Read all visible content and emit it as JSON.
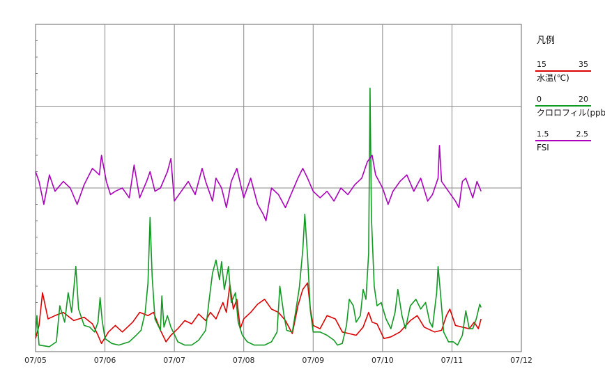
{
  "chart_data": {
    "type": "line",
    "x_ticks": [
      "07/05",
      "07/06",
      "07/07",
      "07/08",
      "07/09",
      "07/10",
      "07/11",
      "07/12"
    ],
    "x_domain_days": [
      0,
      7
    ],
    "grid": true,
    "legend": {
      "title": "凡例",
      "placement": "right"
    },
    "series": [
      {
        "name": "水温(℃)",
        "color": "#dd0000",
        "range": [
          15,
          35
        ],
        "range_labels": [
          "15",
          "35"
        ],
        "points": [
          [
            0,
            15.8
          ],
          [
            0.05,
            16.6
          ],
          [
            0.1,
            18.6
          ],
          [
            0.18,
            17.0
          ],
          [
            0.28,
            17.2
          ],
          [
            0.4,
            17.4
          ],
          [
            0.55,
            16.9
          ],
          [
            0.7,
            17.1
          ],
          [
            0.82,
            16.7
          ],
          [
            0.9,
            16.0
          ],
          [
            0.95,
            15.5
          ],
          [
            1.05,
            16.2
          ],
          [
            1.15,
            16.6
          ],
          [
            1.25,
            16.2
          ],
          [
            1.4,
            16.8
          ],
          [
            1.5,
            17.4
          ],
          [
            1.62,
            17.2
          ],
          [
            1.7,
            17.4
          ],
          [
            1.8,
            16.3
          ],
          [
            1.88,
            15.6
          ],
          [
            1.95,
            16.0
          ],
          [
            2.05,
            16.4
          ],
          [
            2.15,
            16.9
          ],
          [
            2.25,
            16.7
          ],
          [
            2.35,
            17.3
          ],
          [
            2.45,
            16.9
          ],
          [
            2.52,
            17.4
          ],
          [
            2.6,
            17.0
          ],
          [
            2.7,
            18.0
          ],
          [
            2.75,
            17.4
          ],
          [
            2.8,
            19.1
          ],
          [
            2.85,
            17.6
          ],
          [
            2.9,
            18.2
          ],
          [
            2.95,
            16.4
          ],
          [
            3.0,
            17.0
          ],
          [
            3.1,
            17.4
          ],
          [
            3.2,
            17.9
          ],
          [
            3.3,
            18.2
          ],
          [
            3.4,
            17.6
          ],
          [
            3.5,
            17.4
          ],
          [
            3.6,
            16.9
          ],
          [
            3.7,
            16.1
          ],
          [
            3.78,
            17.8
          ],
          [
            3.85,
            18.8
          ],
          [
            3.92,
            19.2
          ],
          [
            3.96,
            17.6
          ],
          [
            4.0,
            16.6
          ],
          [
            4.1,
            16.4
          ],
          [
            4.2,
            17.2
          ],
          [
            4.32,
            17.0
          ],
          [
            4.42,
            16.2
          ],
          [
            4.52,
            16.1
          ],
          [
            4.62,
            16.0
          ],
          [
            4.72,
            16.5
          ],
          [
            4.8,
            17.4
          ],
          [
            4.85,
            16.8
          ],
          [
            4.92,
            16.7
          ],
          [
            5.02,
            15.8
          ],
          [
            5.12,
            15.9
          ],
          [
            5.25,
            16.2
          ],
          [
            5.4,
            16.9
          ],
          [
            5.5,
            17.2
          ],
          [
            5.6,
            16.5
          ],
          [
            5.75,
            16.2
          ],
          [
            5.85,
            16.3
          ],
          [
            5.92,
            17.2
          ],
          [
            5.97,
            17.6
          ],
          [
            6.05,
            16.6
          ],
          [
            6.15,
            16.5
          ],
          [
            6.25,
            16.4
          ],
          [
            6.32,
            16.8
          ],
          [
            6.38,
            16.4
          ],
          [
            6.42,
            17.0
          ]
        ]
      },
      {
        "name": "クロロフィル(ppb)",
        "color": "#119922",
        "range": [
          0,
          20
        ],
        "range_labels": [
          "0",
          "20"
        ],
        "points": [
          [
            0,
            1.0
          ],
          [
            0.02,
            2.2
          ],
          [
            0.05,
            0.4
          ],
          [
            0.2,
            0.3
          ],
          [
            0.3,
            0.6
          ],
          [
            0.35,
            2.8
          ],
          [
            0.42,
            1.8
          ],
          [
            0.47,
            3.6
          ],
          [
            0.52,
            2.4
          ],
          [
            0.58,
            5.2
          ],
          [
            0.62,
            2.6
          ],
          [
            0.7,
            1.6
          ],
          [
            0.78,
            1.5
          ],
          [
            0.85,
            1.2
          ],
          [
            0.9,
            1.8
          ],
          [
            0.93,
            3.3
          ],
          [
            0.96,
            1.9
          ],
          [
            1.0,
            0.8
          ],
          [
            1.1,
            0.5
          ],
          [
            1.2,
            0.4
          ],
          [
            1.35,
            0.6
          ],
          [
            1.45,
            1.0
          ],
          [
            1.52,
            1.3
          ],
          [
            1.58,
            2.4
          ],
          [
            1.62,
            4.2
          ],
          [
            1.65,
            8.2
          ],
          [
            1.68,
            4.6
          ],
          [
            1.72,
            2.0
          ],
          [
            1.8,
            1.3
          ],
          [
            1.82,
            3.4
          ],
          [
            1.85,
            1.5
          ],
          [
            1.9,
            2.2
          ],
          [
            1.95,
            1.5
          ],
          [
            2.05,
            0.6
          ],
          [
            2.15,
            0.4
          ],
          [
            2.25,
            0.4
          ],
          [
            2.35,
            0.7
          ],
          [
            2.45,
            1.3
          ],
          [
            2.5,
            3.1
          ],
          [
            2.55,
            4.8
          ],
          [
            2.6,
            5.6
          ],
          [
            2.65,
            4.4
          ],
          [
            2.68,
            5.5
          ],
          [
            2.72,
            3.8
          ],
          [
            2.78,
            5.2
          ],
          [
            2.82,
            3.0
          ],
          [
            2.88,
            3.6
          ],
          [
            2.92,
            1.8
          ],
          [
            2.98,
            1.0
          ],
          [
            3.05,
            0.6
          ],
          [
            3.15,
            0.4
          ],
          [
            3.3,
            0.4
          ],
          [
            3.4,
            0.6
          ],
          [
            3.48,
            1.2
          ],
          [
            3.52,
            4.0
          ],
          [
            3.58,
            2.2
          ],
          [
            3.62,
            1.3
          ],
          [
            3.7,
            1.2
          ],
          [
            3.75,
            2.5
          ],
          [
            3.8,
            3.9
          ],
          [
            3.85,
            6.2
          ],
          [
            3.88,
            8.4
          ],
          [
            3.92,
            5.8
          ],
          [
            3.96,
            2.5
          ],
          [
            4.0,
            1.2
          ],
          [
            4.1,
            1.2
          ],
          [
            4.2,
            1.0
          ],
          [
            4.3,
            0.7
          ],
          [
            4.35,
            0.4
          ],
          [
            4.42,
            0.5
          ],
          [
            4.48,
            1.6
          ],
          [
            4.52,
            3.2
          ],
          [
            4.58,
            2.8
          ],
          [
            4.62,
            1.8
          ],
          [
            4.68,
            2.2
          ],
          [
            4.72,
            3.8
          ],
          [
            4.76,
            3.2
          ],
          [
            4.8,
            6.0
          ],
          [
            4.82,
            16.1
          ],
          [
            4.84,
            8.2
          ],
          [
            4.88,
            4.0
          ],
          [
            4.92,
            2.8
          ],
          [
            4.98,
            3.0
          ],
          [
            5.05,
            2.0
          ],
          [
            5.12,
            1.4
          ],
          [
            5.18,
            2.4
          ],
          [
            5.22,
            3.8
          ],
          [
            5.28,
            2.2
          ],
          [
            5.33,
            1.4
          ],
          [
            5.4,
            2.8
          ],
          [
            5.48,
            3.2
          ],
          [
            5.55,
            2.6
          ],
          [
            5.62,
            3.0
          ],
          [
            5.68,
            1.8
          ],
          [
            5.72,
            1.5
          ],
          [
            5.78,
            3.6
          ],
          [
            5.8,
            5.2
          ],
          [
            5.83,
            3.8
          ],
          [
            5.88,
            1.2
          ],
          [
            5.95,
            0.6
          ],
          [
            6.02,
            0.6
          ],
          [
            6.08,
            0.4
          ],
          [
            6.15,
            1.0
          ],
          [
            6.2,
            2.5
          ],
          [
            6.25,
            1.4
          ],
          [
            6.3,
            1.4
          ],
          [
            6.35,
            2.0
          ],
          [
            6.4,
            2.9
          ],
          [
            6.42,
            2.7
          ]
        ]
      },
      {
        "name": "FSI",
        "color": "#aa00bb",
        "range": [
          1.5,
          2.5
        ],
        "range_labels": [
          "1.5",
          "2.5"
        ],
        "points": [
          [
            0,
            2.05
          ],
          [
            0.05,
            2.02
          ],
          [
            0.12,
            1.95
          ],
          [
            0.2,
            2.04
          ],
          [
            0.28,
            1.99
          ],
          [
            0.4,
            2.02
          ],
          [
            0.5,
            2.0
          ],
          [
            0.6,
            1.95
          ],
          [
            0.7,
            2.01
          ],
          [
            0.82,
            2.06
          ],
          [
            0.92,
            2.04
          ],
          [
            0.95,
            2.1
          ],
          [
            1.02,
            2.02
          ],
          [
            1.08,
            1.98
          ],
          [
            1.15,
            1.99
          ],
          [
            1.25,
            2.0
          ],
          [
            1.35,
            1.97
          ],
          [
            1.42,
            2.07
          ],
          [
            1.5,
            1.97
          ],
          [
            1.6,
            2.02
          ],
          [
            1.65,
            2.05
          ],
          [
            1.72,
            1.99
          ],
          [
            1.8,
            2.0
          ],
          [
            1.9,
            2.05
          ],
          [
            1.95,
            2.09
          ],
          [
            2.0,
            1.96
          ],
          [
            2.1,
            1.99
          ],
          [
            2.2,
            2.02
          ],
          [
            2.3,
            1.98
          ],
          [
            2.4,
            2.06
          ],
          [
            2.45,
            2.02
          ],
          [
            2.55,
            1.96
          ],
          [
            2.6,
            2.03
          ],
          [
            2.68,
            2.0
          ],
          [
            2.75,
            1.94
          ],
          [
            2.82,
            2.02
          ],
          [
            2.9,
            2.06
          ],
          [
            3.0,
            1.97
          ],
          [
            3.1,
            2.03
          ],
          [
            3.2,
            1.95
          ],
          [
            3.28,
            1.92
          ],
          [
            3.32,
            1.9
          ],
          [
            3.4,
            2.0
          ],
          [
            3.5,
            1.98
          ],
          [
            3.6,
            1.94
          ],
          [
            3.7,
            1.99
          ],
          [
            3.78,
            2.03
          ],
          [
            3.85,
            2.06
          ],
          [
            3.92,
            2.03
          ],
          [
            4.0,
            1.99
          ],
          [
            4.1,
            1.97
          ],
          [
            4.2,
            1.99
          ],
          [
            4.3,
            1.96
          ],
          [
            4.4,
            2.0
          ],
          [
            4.5,
            1.98
          ],
          [
            4.6,
            2.01
          ],
          [
            4.7,
            2.03
          ],
          [
            4.78,
            2.08
          ],
          [
            4.85,
            2.1
          ],
          [
            4.9,
            2.04
          ],
          [
            5.0,
            2.0
          ],
          [
            5.08,
            1.95
          ],
          [
            5.15,
            1.99
          ],
          [
            5.25,
            2.02
          ],
          [
            5.35,
            2.04
          ],
          [
            5.45,
            1.99
          ],
          [
            5.55,
            2.03
          ],
          [
            5.65,
            1.96
          ],
          [
            5.72,
            1.98
          ],
          [
            5.8,
            2.03
          ],
          [
            5.82,
            2.13
          ],
          [
            5.85,
            2.02
          ],
          [
            5.95,
            1.99
          ],
          [
            6.05,
            1.96
          ],
          [
            6.1,
            1.94
          ],
          [
            6.15,
            2.02
          ],
          [
            6.2,
            2.03
          ],
          [
            6.3,
            1.97
          ],
          [
            6.36,
            2.02
          ],
          [
            6.42,
            1.99
          ]
        ]
      }
    ]
  }
}
